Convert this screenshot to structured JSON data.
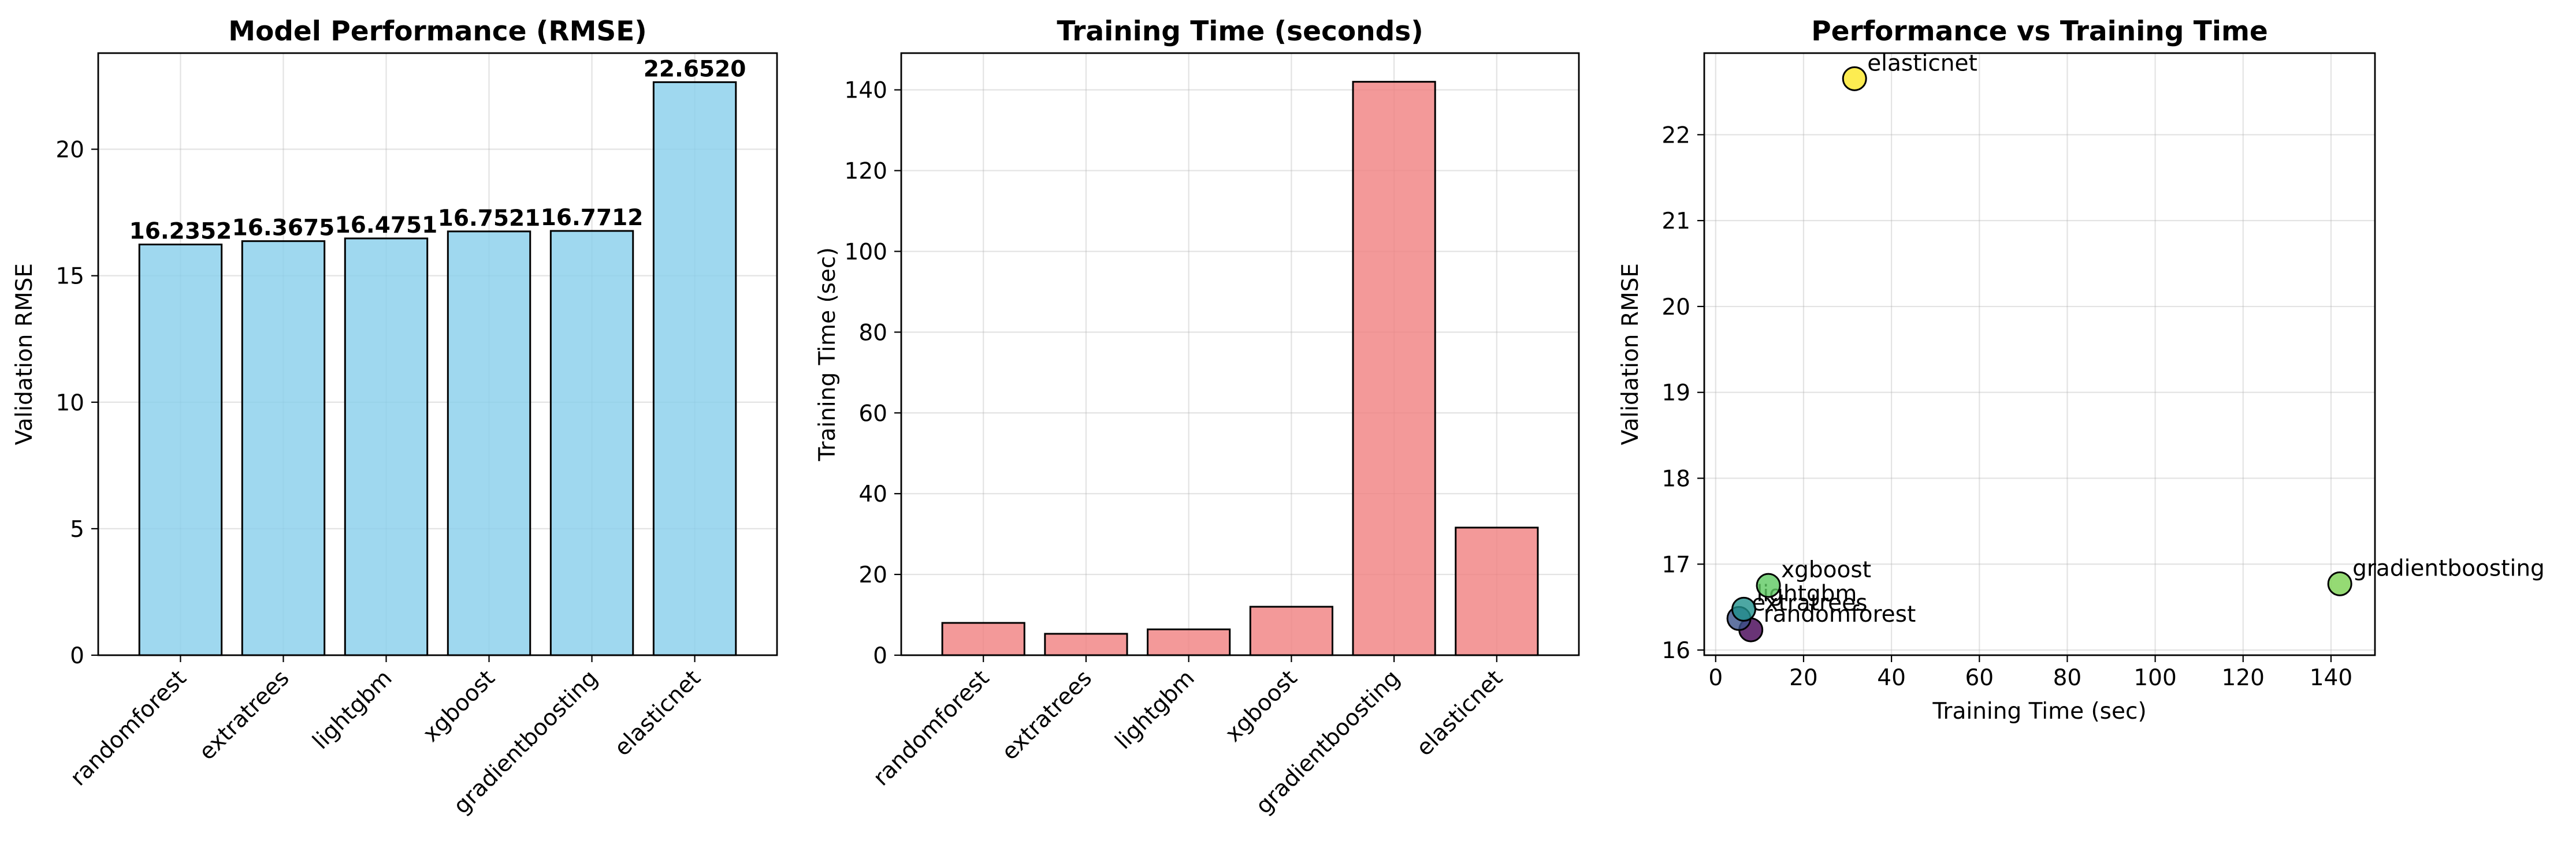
{
  "chart_data": [
    {
      "type": "bar",
      "title": "Model Performance (RMSE)",
      "xlabel": "",
      "ylabel": "Validation RMSE",
      "categories": [
        "randomforest",
        "extratrees",
        "lightgbm",
        "xgboost",
        "gradientboosting",
        "elasticnet"
      ],
      "values": [
        16.2352,
        16.3675,
        16.4751,
        16.7521,
        16.7712,
        22.652
      ],
      "value_labels": [
        "16.2352",
        "16.3675",
        "16.4751",
        "16.7521",
        "16.7712",
        "22.6520"
      ],
      "ylim": [
        0,
        23.8
      ],
      "yticks": [
        0,
        5,
        10,
        15,
        20
      ],
      "bar_color": "#87ceeb",
      "grid": true
    },
    {
      "type": "bar",
      "title": "Training Time (seconds)",
      "xlabel": "",
      "ylabel": "Training Time (sec)",
      "categories": [
        "randomforest",
        "extratrees",
        "lightgbm",
        "xgboost",
        "gradientboosting",
        "elasticnet"
      ],
      "values": [
        8.0,
        5.3,
        6.4,
        12.0,
        142.0,
        31.6
      ],
      "ylim": [
        0,
        149.1
      ],
      "yticks": [
        0,
        20,
        40,
        60,
        80,
        100,
        120,
        140
      ],
      "bar_color": "#f08080",
      "grid": true
    },
    {
      "type": "scatter",
      "title": "Performance vs Training Time",
      "xlabel": "Training Time (sec)",
      "ylabel": "Validation RMSE",
      "points": [
        {
          "label": "randomforest",
          "x": 8.0,
          "y": 16.2352,
          "color": "#440154"
        },
        {
          "label": "extratrees",
          "x": 5.3,
          "y": 16.3675,
          "color": "#3b528b"
        },
        {
          "label": "lightgbm",
          "x": 6.4,
          "y": 16.4751,
          "color": "#21918c"
        },
        {
          "label": "xgboost",
          "x": 12.0,
          "y": 16.7521,
          "color": "#5ec962"
        },
        {
          "label": "gradientboosting",
          "x": 142.0,
          "y": 16.7712,
          "color": "#7ad151"
        },
        {
          "label": "elasticnet",
          "x": 31.6,
          "y": 22.652,
          "color": "#fde725"
        }
      ],
      "xlim": [
        -2.6,
        150.0
      ],
      "ylim": [
        15.94,
        22.95
      ],
      "xticks": [
        0,
        20,
        40,
        60,
        80,
        100,
        120,
        140
      ],
      "yticks": [
        16,
        17,
        18,
        19,
        20,
        21,
        22
      ],
      "grid": true
    }
  ]
}
